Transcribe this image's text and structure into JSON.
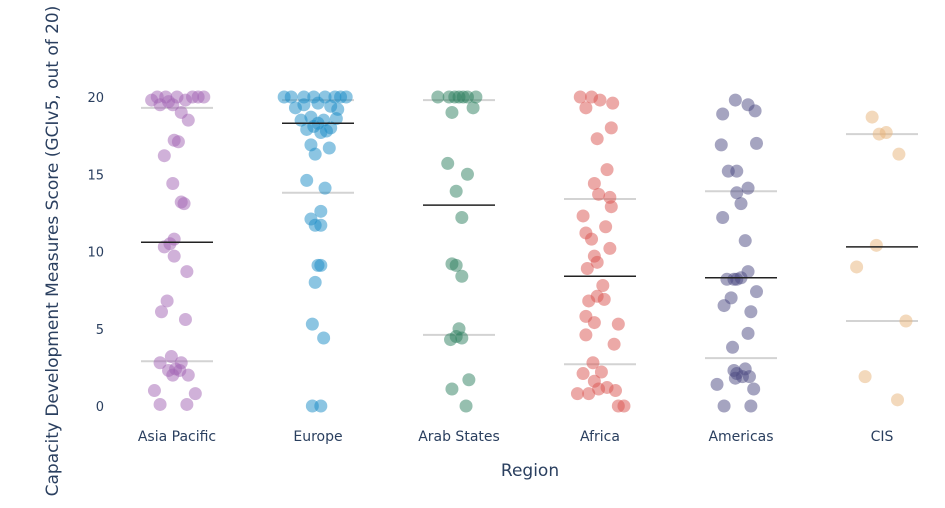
{
  "chart_data": {
    "type": "scatter",
    "subtype": "strip/jitter plot with median and quartile lines",
    "title": "",
    "xlabel": "Region",
    "ylabel": "Capacity Development Measures Score (GCIv5, out of 20)",
    "ylim": [
      0,
      20
    ],
    "yticks": [
      0,
      5,
      10,
      15,
      20
    ],
    "grid": false,
    "legend": null,
    "categories": [
      "Asia Pacific",
      "Europe",
      "Arab States",
      "Africa",
      "Americas",
      "CIS"
    ],
    "colors": {
      "Asia Pacific": "#a164b4",
      "Europe": "#1a8cc6",
      "Arab States": "#2e8060",
      "Africa": "#d9534f",
      "Americas": "#4b4a82",
      "CIS": "#e8b37a"
    },
    "series": [
      {
        "name": "Asia Pacific",
        "median": 10.6,
        "q1": 2.9,
        "q3": 19.3,
        "points": [
          [
            -0.18,
            19.8
          ],
          [
            -0.12,
            19.5
          ],
          [
            -0.08,
            20.0
          ],
          [
            -0.03,
            19.5
          ],
          [
            0.0,
            20.0
          ],
          [
            0.06,
            19.8
          ],
          [
            0.11,
            20.0
          ],
          [
            0.15,
            20.0
          ],
          [
            0.19,
            20.0
          ],
          [
            -0.14,
            20.0
          ],
          [
            -0.06,
            19.7
          ],
          [
            0.03,
            19.0
          ],
          [
            0.08,
            18.5
          ],
          [
            -0.02,
            17.2
          ],
          [
            0.01,
            17.1
          ],
          [
            -0.09,
            16.2
          ],
          [
            -0.03,
            14.4
          ],
          [
            0.03,
            13.2
          ],
          [
            0.05,
            13.1
          ],
          [
            -0.02,
            10.8
          ],
          [
            -0.09,
            10.3
          ],
          [
            -0.05,
            10.5
          ],
          [
            -0.02,
            9.7
          ],
          [
            0.07,
            8.7
          ],
          [
            -0.07,
            6.8
          ],
          [
            -0.11,
            6.1
          ],
          [
            0.06,
            5.6
          ],
          [
            -0.12,
            2.8
          ],
          [
            -0.04,
            3.2
          ],
          [
            0.03,
            2.8
          ],
          [
            -0.06,
            2.3
          ],
          [
            -0.01,
            2.4
          ],
          [
            0.02,
            2.3
          ],
          [
            0.08,
            2.0
          ],
          [
            -0.03,
            2.0
          ],
          [
            -0.16,
            1.0
          ],
          [
            0.13,
            0.8
          ],
          [
            -0.12,
            0.1
          ],
          [
            0.07,
            0.1
          ]
        ]
      },
      {
        "name": "Europe",
        "median": 18.3,
        "q1": 13.8,
        "q3": 19.8,
        "points": [
          [
            -0.24,
            20.0
          ],
          [
            -0.19,
            20.0
          ],
          [
            -0.1,
            20.0
          ],
          [
            -0.03,
            20.0
          ],
          [
            0.05,
            20.0
          ],
          [
            0.12,
            20.0
          ],
          [
            0.16,
            20.0
          ],
          [
            0.2,
            20.0
          ],
          [
            -0.16,
            19.3
          ],
          [
            -0.1,
            19.5
          ],
          [
            0.0,
            19.6
          ],
          [
            0.09,
            19.4
          ],
          [
            0.14,
            19.2
          ],
          [
            -0.12,
            18.5
          ],
          [
            -0.05,
            18.7
          ],
          [
            0.0,
            18.3
          ],
          [
            0.04,
            18.5
          ],
          [
            0.09,
            18.0
          ],
          [
            0.13,
            18.6
          ],
          [
            -0.08,
            17.9
          ],
          [
            -0.03,
            18.1
          ],
          [
            0.02,
            17.7
          ],
          [
            0.06,
            17.8
          ],
          [
            -0.05,
            16.9
          ],
          [
            -0.02,
            16.3
          ],
          [
            0.08,
            16.7
          ],
          [
            -0.08,
            14.6
          ],
          [
            0.05,
            14.1
          ],
          [
            -0.05,
            12.1
          ],
          [
            0.02,
            12.6
          ],
          [
            -0.02,
            11.7
          ],
          [
            0.02,
            11.7
          ],
          [
            0.0,
            9.1
          ],
          [
            0.02,
            9.1
          ],
          [
            -0.02,
            8.0
          ],
          [
            -0.04,
            5.3
          ],
          [
            0.04,
            4.4
          ],
          [
            -0.04,
            0.0
          ],
          [
            0.02,
            0.0
          ]
        ]
      },
      {
        "name": "Arab States",
        "median": 13.0,
        "q1": 4.6,
        "q3": 19.8,
        "points": [
          [
            -0.07,
            20.0
          ],
          [
            -0.03,
            20.0
          ],
          [
            0.0,
            20.0
          ],
          [
            0.03,
            20.0
          ],
          [
            0.06,
            20.0
          ],
          [
            0.12,
            20.0
          ],
          [
            -0.15,
            20.0
          ],
          [
            -0.05,
            19.0
          ],
          [
            0.1,
            19.3
          ],
          [
            -0.08,
            15.7
          ],
          [
            0.06,
            15.0
          ],
          [
            -0.02,
            13.9
          ],
          [
            0.02,
            12.2
          ],
          [
            -0.05,
            9.2
          ],
          [
            -0.02,
            9.1
          ],
          [
            0.02,
            8.4
          ],
          [
            0.0,
            5.0
          ],
          [
            -0.06,
            4.3
          ],
          [
            0.02,
            4.4
          ],
          [
            -0.02,
            4.5
          ],
          [
            0.07,
            1.7
          ],
          [
            -0.05,
            1.1
          ],
          [
            0.05,
            0.0
          ]
        ]
      },
      {
        "name": "Africa",
        "median": 8.4,
        "q1": 2.7,
        "q3": 13.4,
        "points": [
          [
            -0.14,
            20.0
          ],
          [
            -0.06,
            20.0
          ],
          [
            0.0,
            19.8
          ],
          [
            -0.1,
            19.3
          ],
          [
            0.09,
            19.6
          ],
          [
            -0.02,
            17.3
          ],
          [
            0.08,
            18.0
          ],
          [
            0.05,
            15.3
          ],
          [
            -0.04,
            14.4
          ],
          [
            -0.01,
            13.7
          ],
          [
            0.07,
            13.5
          ],
          [
            0.08,
            12.9
          ],
          [
            -0.12,
            12.3
          ],
          [
            -0.1,
            11.2
          ],
          [
            0.04,
            11.6
          ],
          [
            -0.06,
            10.8
          ],
          [
            0.07,
            10.2
          ],
          [
            -0.04,
            9.7
          ],
          [
            -0.02,
            9.3
          ],
          [
            -0.09,
            8.9
          ],
          [
            0.02,
            7.8
          ],
          [
            -0.02,
            7.1
          ],
          [
            0.03,
            6.9
          ],
          [
            -0.08,
            6.8
          ],
          [
            -0.1,
            5.8
          ],
          [
            -0.04,
            5.4
          ],
          [
            0.13,
            5.3
          ],
          [
            -0.1,
            4.6
          ],
          [
            0.1,
            4.0
          ],
          [
            -0.05,
            2.8
          ],
          [
            -0.12,
            2.1
          ],
          [
            0.01,
            2.2
          ],
          [
            -0.04,
            1.6
          ],
          [
            0.05,
            1.2
          ],
          [
            -0.01,
            1.1
          ],
          [
            0.11,
            1.0
          ],
          [
            -0.16,
            0.8
          ],
          [
            -0.08,
            0.8
          ],
          [
            0.13,
            0.0
          ],
          [
            0.17,
            0.0
          ]
        ]
      },
      {
        "name": "Americas",
        "median": 8.3,
        "q1": 3.1,
        "q3": 13.9,
        "points": [
          [
            -0.04,
            19.8
          ],
          [
            0.05,
            19.5
          ],
          [
            0.1,
            19.1
          ],
          [
            -0.13,
            18.9
          ],
          [
            -0.14,
            16.9
          ],
          [
            0.11,
            17.0
          ],
          [
            -0.09,
            15.2
          ],
          [
            -0.03,
            15.2
          ],
          [
            0.05,
            14.1
          ],
          [
            -0.03,
            13.8
          ],
          [
            0.0,
            13.1
          ],
          [
            -0.13,
            12.2
          ],
          [
            0.03,
            10.7
          ],
          [
            -0.03,
            8.2
          ],
          [
            0.0,
            8.3
          ],
          [
            0.05,
            8.7
          ],
          [
            0.11,
            7.4
          ],
          [
            -0.1,
            8.2
          ],
          [
            -0.05,
            8.2
          ],
          [
            -0.07,
            7.0
          ],
          [
            -0.12,
            6.5
          ],
          [
            0.07,
            6.1
          ],
          [
            0.05,
            4.7
          ],
          [
            -0.06,
            3.8
          ],
          [
            -0.05,
            2.3
          ],
          [
            0.03,
            2.4
          ],
          [
            -0.03,
            2.1
          ],
          [
            0.01,
            1.9
          ],
          [
            -0.04,
            1.8
          ],
          [
            0.06,
            1.9
          ],
          [
            -0.17,
            1.4
          ],
          [
            0.09,
            1.1
          ],
          [
            -0.12,
            0.0
          ],
          [
            0.07,
            0.0
          ]
        ]
      },
      {
        "name": "CIS",
        "median": 10.3,
        "q1": 5.5,
        "q3": 17.6,
        "points": [
          [
            -0.07,
            18.7
          ],
          [
            -0.02,
            17.6
          ],
          [
            0.03,
            17.7
          ],
          [
            0.12,
            16.3
          ],
          [
            -0.04,
            10.4
          ],
          [
            -0.18,
            9.0
          ],
          [
            0.17,
            5.5
          ],
          [
            -0.12,
            1.9
          ],
          [
            0.11,
            0.4
          ]
        ]
      }
    ]
  },
  "axes": {
    "x_title": "Region",
    "y_title": "Capacity Development Measures Score (GCIv5, out of 20)",
    "y_tick_labels": [
      "0",
      "5",
      "10",
      "15",
      "20"
    ],
    "x_tick_labels": [
      "Asia Pacific",
      "Europe",
      "Arab States",
      "Africa",
      "Americas",
      "CIS"
    ]
  }
}
